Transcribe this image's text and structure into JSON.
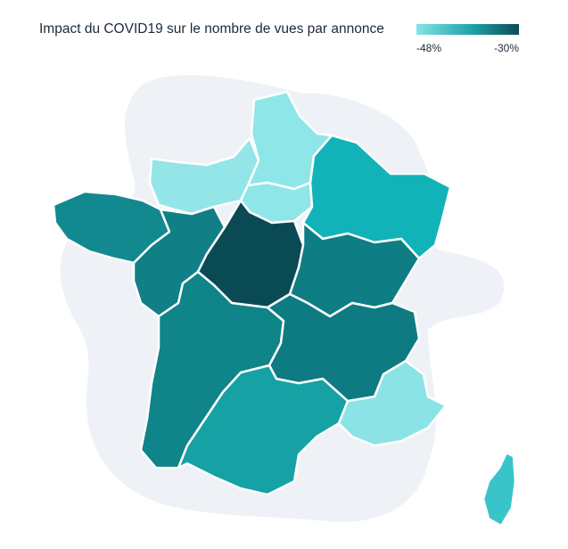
{
  "title": "Impact du COVID19 sur le nombre de vues par annonce",
  "legend": {
    "min_label": "-48%",
    "max_label": "-30%",
    "color_min": "#86e3e6",
    "color_max": "#0b4d57"
  },
  "regions": [
    {
      "name": "Hauts-de-France",
      "color": "#8ee6e8"
    },
    {
      "name": "Normandie",
      "color": "#94e5e7"
    },
    {
      "name": "Île-de-France",
      "color": "#8ee6e8"
    },
    {
      "name": "Grand Est",
      "color": "#11b3b8"
    },
    {
      "name": "Bretagne",
      "color": "#12898f"
    },
    {
      "name": "Pays de la Loire",
      "color": "#117f86"
    },
    {
      "name": "Centre-Val de Loire",
      "color": "#0a4a55"
    },
    {
      "name": "Bourgogne-Franche-Comté",
      "color": "#0f7d84"
    },
    {
      "name": "Nouvelle-Aquitaine",
      "color": "#0f8489"
    },
    {
      "name": "Auvergne-Rhône-Alpes",
      "color": "#0e7b82"
    },
    {
      "name": "Occitanie",
      "color": "#16a1a5"
    },
    {
      "name": "Provence-Alpes-Côte d'Azur",
      "color": "#8ce3e5"
    },
    {
      "name": "Corse",
      "color": "#38c4c8"
    }
  ]
}
